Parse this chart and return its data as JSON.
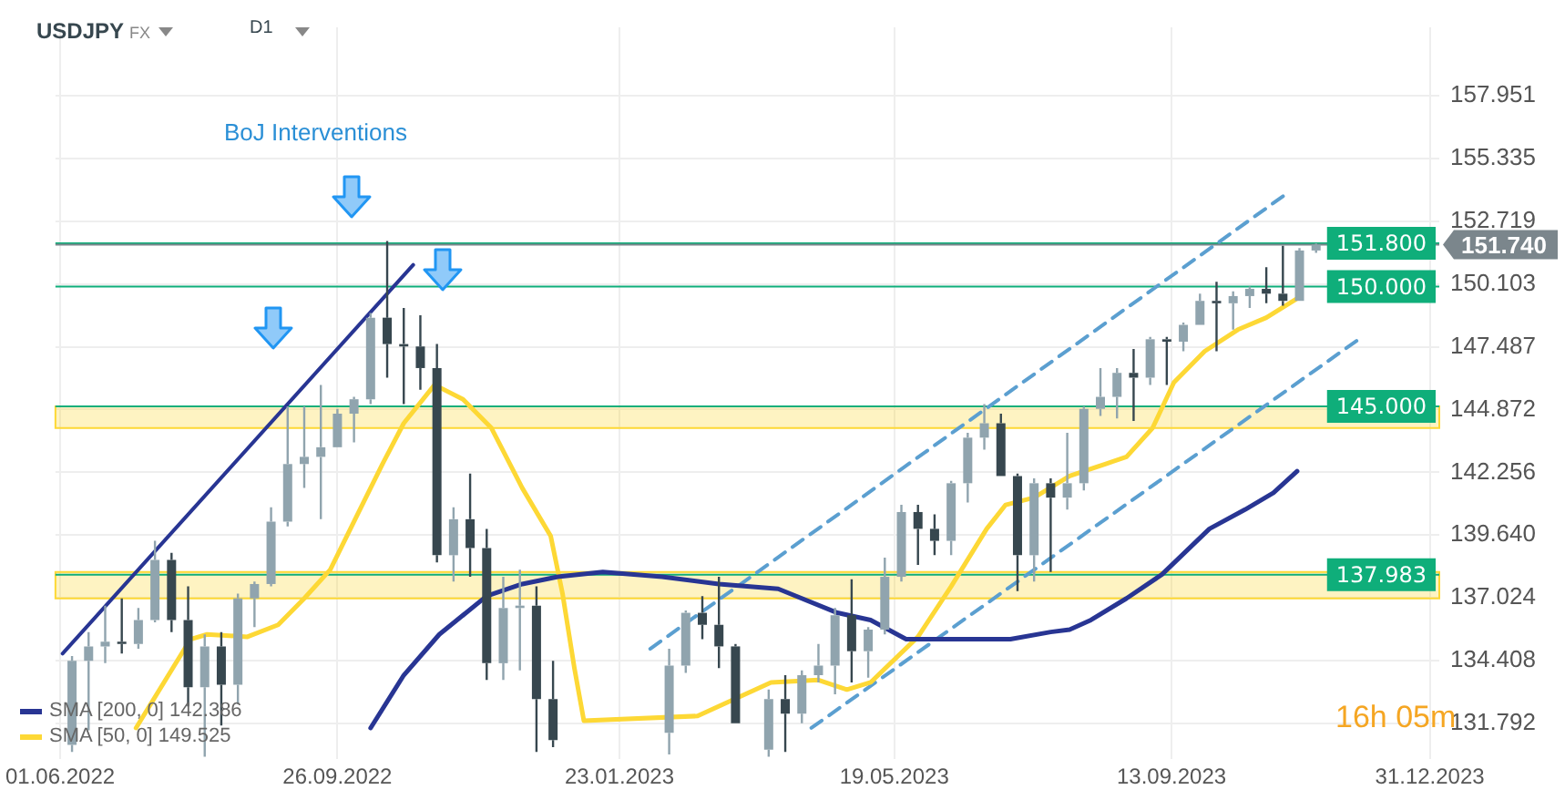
{
  "chart_data": {
    "type": "candlestick",
    "title": "USDJPY",
    "subtitle": "FX",
    "annotations": [
      "D1",
      "BoJ Interventions",
      "16h 05m"
    ],
    "x": [
      "2022-06-06",
      "2022-06-13",
      "2022-06-20",
      "2022-06-27",
      "2022-07-04",
      "2022-07-11",
      "2022-07-18",
      "2022-07-25",
      "2022-08-01",
      "2022-08-08",
      "2022-08-15",
      "2022-08-22",
      "2022-08-29",
      "2022-09-05",
      "2022-09-12",
      "2022-09-19",
      "2022-09-26",
      "2022-10-03",
      "2022-10-10",
      "2022-10-17",
      "2022-10-24",
      "2022-10-31",
      "2022-11-07",
      "2022-11-14",
      "2022-11-21",
      "2022-11-28",
      "2022-12-05",
      "2022-12-12",
      "2022-12-19",
      "2022-12-26",
      "2023-02-13",
      "2023-02-20",
      "2023-02-27",
      "2023-03-06",
      "2023-03-13",
      "2023-03-27",
      "2023-04-03",
      "2023-04-10",
      "2023-04-17",
      "2023-04-24",
      "2023-05-01",
      "2023-05-08",
      "2023-05-15",
      "2023-05-22",
      "2023-05-29",
      "2023-06-05",
      "2023-06-12",
      "2023-06-19",
      "2023-06-26",
      "2023-07-03",
      "2023-07-10",
      "2023-07-17",
      "2023-07-24",
      "2023-07-31",
      "2023-08-07",
      "2023-08-14",
      "2023-08-21",
      "2023-08-28",
      "2023-09-04",
      "2023-09-11",
      "2023-09-18",
      "2023-09-25",
      "2023-10-02",
      "2023-10-09",
      "2023-10-16",
      "2023-10-23",
      "2023-10-30",
      "2023-11-06",
      "2023-11-13"
    ],
    "ohlc": [
      [
        130.9,
        134.6,
        130.6,
        134.4
      ],
      [
        134.4,
        135.6,
        131.5,
        135.0
      ],
      [
        135.0,
        136.7,
        134.3,
        135.2
      ],
      [
        135.2,
        137.0,
        134.7,
        135.1
      ],
      [
        135.1,
        136.6,
        134.9,
        136.1
      ],
      [
        136.1,
        139.4,
        136.0,
        138.6
      ],
      [
        138.6,
        138.9,
        135.6,
        136.1
      ],
      [
        136.1,
        137.5,
        132.5,
        133.3
      ],
      [
        133.3,
        135.5,
        130.4,
        135.0
      ],
      [
        135.0,
        135.6,
        131.7,
        133.4
      ],
      [
        133.4,
        137.2,
        132.6,
        137.0
      ],
      [
        137.0,
        137.7,
        135.8,
        137.6
      ],
      [
        137.6,
        140.8,
        137.5,
        140.2
      ],
      [
        140.2,
        145.0,
        140.0,
        142.6
      ],
      [
        142.6,
        145.0,
        141.6,
        142.9
      ],
      [
        142.9,
        145.9,
        140.3,
        143.3
      ],
      [
        143.3,
        144.9,
        143.3,
        144.7
      ],
      [
        144.7,
        145.4,
        143.5,
        145.3
      ],
      [
        145.3,
        148.9,
        145.1,
        148.7
      ],
      [
        148.7,
        151.9,
        146.2,
        147.6
      ],
      [
        147.6,
        149.1,
        145.1,
        147.5
      ],
      [
        147.5,
        148.8,
        145.7,
        146.6
      ],
      [
        146.6,
        147.6,
        138.5,
        138.8
      ],
      [
        138.8,
        140.8,
        137.7,
        140.3
      ],
      [
        140.3,
        142.2,
        137.9,
        139.1
      ],
      [
        139.1,
        139.9,
        133.6,
        134.3
      ],
      [
        134.3,
        137.9,
        133.6,
        136.6
      ],
      [
        136.6,
        138.2,
        134.0,
        136.7
      ],
      [
        136.7,
        137.5,
        130.6,
        132.8
      ],
      [
        132.8,
        134.4,
        130.8,
        131.1
      ],
      [
        131.4,
        134.9,
        130.5,
        134.2
      ],
      [
        134.2,
        136.5,
        133.9,
        136.4
      ],
      [
        136.4,
        137.1,
        135.3,
        135.9
      ],
      [
        135.9,
        137.9,
        134.1,
        135.0
      ],
      [
        135.0,
        135.1,
        131.8,
        131.8
      ],
      [
        130.7,
        133.2,
        130.4,
        132.8
      ],
      [
        132.8,
        133.8,
        130.6,
        132.2
      ],
      [
        132.2,
        134.0,
        131.8,
        133.8
      ],
      [
        133.8,
        135.1,
        133.5,
        134.2
      ],
      [
        134.2,
        136.6,
        133.0,
        136.3
      ],
      [
        136.3,
        137.8,
        133.5,
        134.8
      ],
      [
        134.8,
        135.8,
        133.7,
        135.7
      ],
      [
        135.7,
        138.7,
        135.5,
        137.9
      ],
      [
        137.9,
        140.9,
        137.7,
        140.6
      ],
      [
        140.6,
        140.9,
        138.4,
        139.9
      ],
      [
        139.9,
        140.5,
        138.8,
        139.4
      ],
      [
        139.4,
        141.9,
        138.8,
        141.8
      ],
      [
        141.8,
        143.9,
        141.0,
        143.7
      ],
      [
        143.7,
        145.1,
        143.2,
        144.3
      ],
      [
        144.3,
        144.7,
        142.1,
        142.1
      ],
      [
        142.1,
        142.2,
        137.3,
        138.8
      ],
      [
        138.8,
        142.0,
        137.7,
        141.8
      ],
      [
        141.8,
        142.0,
        138.1,
        141.2
      ],
      [
        141.2,
        143.9,
        140.7,
        141.8
      ],
      [
        141.8,
        145.0,
        141.5,
        144.9
      ],
      [
        144.9,
        146.6,
        144.6,
        145.4
      ],
      [
        145.4,
        146.6,
        144.5,
        146.4
      ],
      [
        146.4,
        147.4,
        144.4,
        146.2
      ],
      [
        146.2,
        147.9,
        145.9,
        147.8
      ],
      [
        147.8,
        147.9,
        145.9,
        147.7
      ],
      [
        147.7,
        148.5,
        147.3,
        148.4
      ],
      [
        148.4,
        149.7,
        148.4,
        149.4
      ],
      [
        149.4,
        150.2,
        147.3,
        149.3
      ],
      [
        149.3,
        149.8,
        148.2,
        149.6
      ],
      [
        149.6,
        150.0,
        149.1,
        149.9
      ],
      [
        149.9,
        150.8,
        149.3,
        149.7
      ],
      [
        149.7,
        151.7,
        149.2,
        149.4
      ],
      [
        149.4,
        151.6,
        149.4,
        151.5
      ],
      [
        151.5,
        151.8,
        151.4,
        151.74
      ]
    ],
    "colors": [
      "#90a4ae",
      "#90a4ae",
      "#90a4ae",
      "#37474f",
      "#90a4ae",
      "#90a4ae",
      "#37474f",
      "#37474f",
      "#90a4ae",
      "#37474f",
      "#90a4ae",
      "#90a4ae",
      "#90a4ae",
      "#90a4ae",
      "#90a4ae",
      "#90a4ae",
      "#90a4ae",
      "#90a4ae",
      "#90a4ae",
      "#37474f",
      "#37474f",
      "#37474f",
      "#37474f",
      "#90a4ae",
      "#37474f",
      "#37474f",
      "#90a4ae",
      "#90a4ae",
      "#37474f",
      "#37474f",
      "#90a4ae",
      "#90a4ae",
      "#37474f",
      "#37474f",
      "#37474f",
      "#90a4ae",
      "#37474f",
      "#90a4ae",
      "#90a4ae",
      "#90a4ae",
      "#37474f",
      "#90a4ae",
      "#90a4ae",
      "#90a4ae",
      "#37474f",
      "#37474f",
      "#90a4ae",
      "#90a4ae",
      "#90a4ae",
      "#37474f",
      "#37474f",
      "#90a4ae",
      "#37474f",
      "#90a4ae",
      "#90a4ae",
      "#90a4ae",
      "#90a4ae",
      "#37474f",
      "#90a4ae",
      "#37474f",
      "#90a4ae",
      "#90a4ae",
      "#37474f",
      "#90a4ae",
      "#90a4ae",
      "#37474f",
      "#37474f",
      "#90a4ae",
      "#90a4ae"
    ],
    "series": [
      {
        "name": "SMA [200, 0] 142.386",
        "type": "line",
        "color": "#283593",
        "x": [
          "2022-10-10",
          "2022-10-24",
          "2022-11-08",
          "2022-11-28",
          "2022-12-13",
          "2022-12-28",
          "2023-01-16",
          "2023-02-10",
          "2023-03-06",
          "2023-03-31",
          "2023-04-25",
          "2023-05-09",
          "2023-05-24",
          "2023-06-12",
          "2023-06-23",
          "2023-07-07",
          "2023-07-24",
          "2023-08-01",
          "2023-08-10",
          "2023-08-25",
          "2023-09-09",
          "2023-09-29",
          "2023-10-14",
          "2023-10-26",
          "2023-11-05"
        ],
        "values": [
          131.6,
          133.8,
          135.5,
          137.1,
          137.6,
          137.9,
          138.1,
          137.9,
          137.6,
          137.4,
          136.4,
          136.1,
          135.3,
          135.3,
          135.3,
          135.3,
          135.6,
          135.7,
          136.1,
          137.0,
          138.0,
          139.9,
          140.7,
          141.4,
          142.3
        ]
      },
      {
        "name": "SMA [50, 0] 149.525",
        "type": "line",
        "color": "#fdd835",
        "x": [
          "2022-07-03",
          "2022-07-26",
          "2022-08-02",
          "2022-08-19",
          "2022-09-01",
          "2022-09-12",
          "2022-09-23",
          "2022-10-04",
          "2022-10-15",
          "2022-10-24",
          "2022-11-06",
          "2022-11-18",
          "2022-11-30",
          "2022-12-13",
          "2022-12-25",
          "2022-12-30",
          "2023-01-04",
          "2023-01-08",
          "2023-02-25",
          "2023-03-28",
          "2023-04-17",
          "2023-04-29",
          "2023-05-09",
          "2023-05-29",
          "2023-06-12",
          "2023-06-27",
          "2023-07-05",
          "2023-07-17",
          "2023-08-01",
          "2023-08-16",
          "2023-08-25",
          "2023-09-05",
          "2023-09-14",
          "2023-09-27",
          "2023-10-11",
          "2023-10-23",
          "2023-11-05"
        ],
        "values": [
          131.6,
          135.3,
          135.5,
          135.4,
          135.9,
          137.0,
          138.2,
          140.4,
          142.6,
          144.3,
          145.9,
          145.3,
          144.1,
          141.6,
          139.6,
          137.2,
          134.1,
          131.9,
          132.1,
          133.5,
          133.6,
          133.2,
          133.5,
          135.4,
          137.5,
          139.9,
          140.9,
          141.2,
          142.1,
          142.6,
          142.9,
          144.1,
          146.0,
          147.3,
          148.2,
          148.7,
          149.5
        ]
      },
      {
        "type": "line",
        "color": "#283593",
        "x": [
          "2022-06-02",
          "2022-10-28"
        ],
        "values": [
          134.7,
          150.9
        ]
      },
      {
        "type": "line",
        "color": "#5b9fd0",
        "line_style": "dashed",
        "x": [
          "2023-02-05",
          "2023-11-01"
        ],
        "values": [
          134.9,
          153.9
        ]
      },
      {
        "type": "line",
        "color": "#5b9fd0",
        "line_style": "dashed",
        "x": [
          "2023-04-14",
          "2023-12-01"
        ],
        "values": [
          131.6,
          147.8
        ]
      }
    ],
    "xlim": [
      "2022-05-30",
      "2024-01-04"
    ],
    "xticks": [
      {
        "value": "2022-06-01",
        "label": "01.06.2022"
      },
      {
        "value": "2022-09-26",
        "label": "26.09.2022"
      },
      {
        "value": "2023-01-23",
        "label": "23.01.2023"
      },
      {
        "value": "2023-05-19",
        "label": "19.05.2023"
      },
      {
        "value": "2023-09-13",
        "label": "13.09.2023"
      },
      {
        "value": "2023-12-31",
        "label": "31.12.2023"
      }
    ],
    "ylim": [
      130.3,
      160.8
    ],
    "yticks": [
      131.792,
      134.408,
      137.024,
      {
        "value": 139.64,
        "label": "139.640"
      },
      142.256,
      144.872,
      147.487,
      150.103,
      152.719,
      155.335,
      157.951
    ],
    "grid": true,
    "legend": "bottom left",
    "marker": "none",
    "ref_lines": [
      {
        "axis": "y",
        "value": 151.8,
        "label": "151.800",
        "color": "#0fae7a"
      },
      {
        "axis": "y",
        "value": 150.0,
        "label": "150.000",
        "color": "#0fae7a"
      },
      {
        "axis": "y",
        "value": 145.0,
        "label": "145.000",
        "color": "#0fae7a"
      },
      {
        "axis": "y",
        "value": 137.983,
        "label": "137.983",
        "color": "#0fae7a"
      },
      {
        "axis": "y",
        "value": 151.74,
        "label": "151.740",
        "color": "#7b868c"
      }
    ],
    "bands": [
      {
        "axis": "y",
        "from": 144.1,
        "to": 145.0,
        "color": "#fdd835"
      },
      {
        "axis": "y",
        "from": 137.0,
        "to": 138.1,
        "color": "#fdd835"
      }
    ]
  }
}
